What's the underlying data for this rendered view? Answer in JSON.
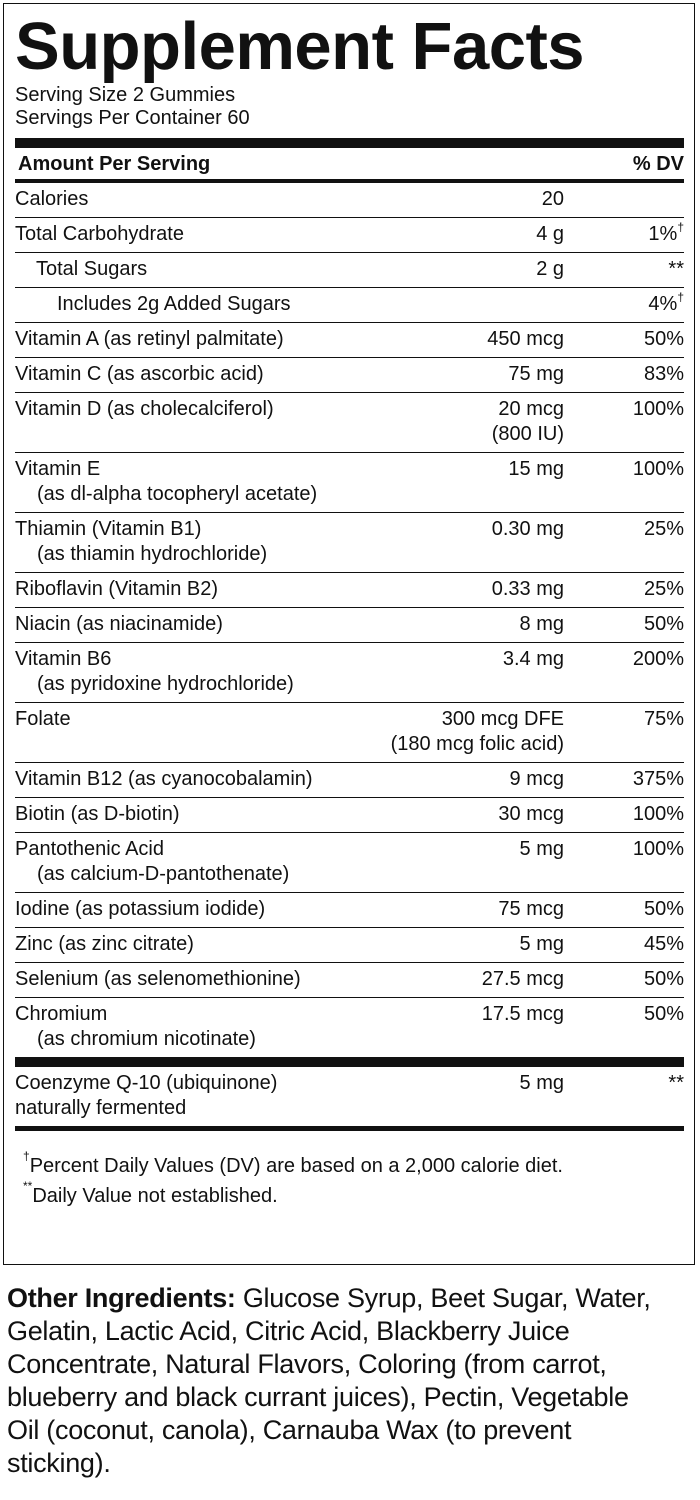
{
  "title": "Supplement Facts",
  "serving_size": "Serving Size 2 Gummies",
  "servings_per_container": "Servings Per Container 60",
  "header": {
    "amount": "Amount Per Serving",
    "dv": "% DV"
  },
  "rows": [
    {
      "name": [
        "Calories"
      ],
      "amount": [
        "20"
      ]
    },
    {
      "name": [
        "Total Carbohydrate"
      ],
      "amount": [
        "4 g"
      ],
      "dv": "1%",
      "dv_mark": "†",
      "sub_rows": [
        {
          "name": [
            "Total Sugars"
          ],
          "amount": [
            "2 g"
          ],
          "dv": "**",
          "sub_rows": [
            {
              "name": [
                "Includes 2g Added Sugars"
              ],
              "dv": "4%",
              "dv_mark": "†"
            }
          ]
        }
      ]
    },
    {
      "name": [
        "Vitamin A (as retinyl palmitate)"
      ],
      "amount": [
        "450 mcg"
      ],
      "dv": "50%"
    },
    {
      "name": [
        "Vitamin C (as ascorbic acid)"
      ],
      "amount": [
        "75 mg"
      ],
      "dv": "83%"
    },
    {
      "name": [
        "Vitamin D (as cholecalciferol)"
      ],
      "amount": [
        "20 mcg",
        "(800 IU)"
      ],
      "dv": "100%"
    },
    {
      "name": [
        "Vitamin E",
        "(as dl-alpha tocopheryl acetate)"
      ],
      "amount": [
        "15 mg"
      ],
      "dv": "100%"
    },
    {
      "name": [
        "Thiamin (Vitamin B1)",
        "(as thiamin hydrochloride)"
      ],
      "amount": [
        "0.30 mg"
      ],
      "dv": "25%"
    },
    {
      "name": [
        "Riboflavin (Vitamin B2)"
      ],
      "amount": [
        "0.33 mg"
      ],
      "dv": "25%"
    },
    {
      "name": [
        "Niacin (as niacinamide)"
      ],
      "amount": [
        "8 mg"
      ],
      "dv": "50%"
    },
    {
      "name": [
        "Vitamin B6",
        "(as pyridoxine hydrochloride)"
      ],
      "amount": [
        "3.4 mg"
      ],
      "dv": "200%"
    },
    {
      "name": [
        "Folate"
      ],
      "amount": [
        "300 mcg DFE",
        "(180 mcg folic acid)"
      ],
      "dv": "75%"
    },
    {
      "name": [
        "Vitamin B12 (as cyanocobalamin)"
      ],
      "amount": [
        "9 mcg"
      ],
      "dv": "375%"
    },
    {
      "name": [
        "Biotin (as D-biotin)"
      ],
      "amount": [
        "30 mcg"
      ],
      "dv": "100%"
    },
    {
      "name": [
        "Pantothenic Acid",
        "(as calcium-D-pantothenate)"
      ],
      "amount": [
        "5 mg"
      ],
      "dv": "100%"
    },
    {
      "name": [
        "Iodine (as potassium iodide)"
      ],
      "amount": [
        "75 mcg"
      ],
      "dv": "50%"
    },
    {
      "name": [
        "Zinc (as zinc citrate)"
      ],
      "amount": [
        "5 mg"
      ],
      "dv": "45%"
    },
    {
      "name": [
        "Selenium (as selenomethionine)"
      ],
      "amount": [
        "27.5 mcg"
      ],
      "dv": "50%"
    },
    {
      "name": [
        "Chromium",
        "(as chromium nicotinate)"
      ],
      "amount": [
        "17.5 mcg"
      ],
      "dv": "50%"
    }
  ],
  "additional_rows": [
    {
      "name": [
        "Coenzyme Q-10 (ubiquinone)",
        "naturally fermented"
      ],
      "amount": [
        "5 mg"
      ],
      "dv": "**"
    }
  ],
  "footnotes": [
    {
      "mark": "†",
      "text": "Percent Daily Values (DV) are based on a 2,000 calorie diet."
    },
    {
      "mark": "**",
      "text": "Daily Value not established."
    }
  ],
  "other_ingredients": {
    "label": "Other Ingredients:",
    "text": "Glucose Syrup, Beet Sugar, Water, Gelatin, Lactic Acid, Citric Acid, Blackberry Juice Concentrate, Natural Flavors, Coloring (from carrot, blueberry and black currant juices), Pectin, Vegetable Oil (coconut, canola), Carnauba Wax (to prevent sticking)."
  }
}
